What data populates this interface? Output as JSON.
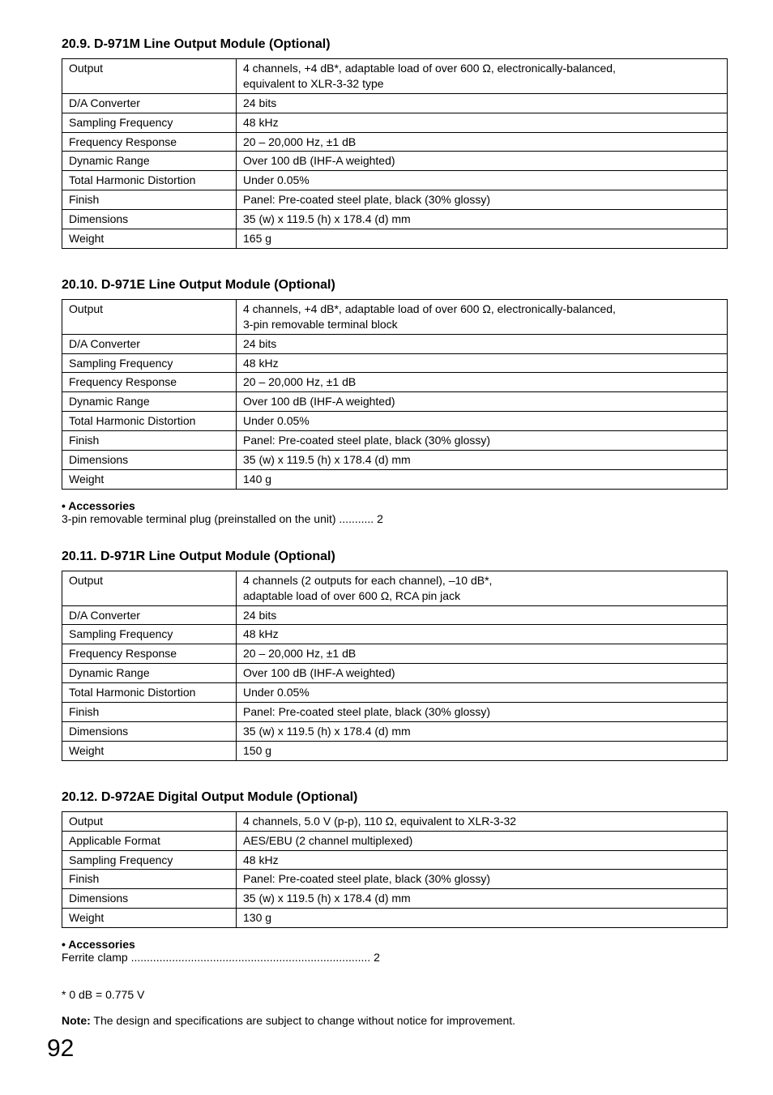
{
  "page_number": "92",
  "sections": [
    {
      "title": "20.9. D-971M Line Output Module (Optional)",
      "rows": [
        [
          "Output",
          "4 channels, +4 dB*, adaptable load of over 600 Ω, electronically-balanced,\nequivalent to XLR-3-32 type"
        ],
        [
          "D/A Converter",
          "24 bits"
        ],
        [
          "Sampling Frequency",
          "48 kHz"
        ],
        [
          "Frequency Response",
          "20 – 20,000 Hz, ±1 dB"
        ],
        [
          "Dynamic Range",
          "Over 100 dB (IHF-A weighted)"
        ],
        [
          "Total Harmonic Distortion",
          "Under 0.05%"
        ],
        [
          "Finish",
          "Panel: Pre-coated steel plate, black (30% glossy)"
        ],
        [
          "Dimensions",
          "35 (w) x 119.5 (h) x 178.4 (d) mm"
        ],
        [
          "Weight",
          "165 g"
        ]
      ]
    },
    {
      "title": "20.10. D-971E Line Output Module (Optional)",
      "rows": [
        [
          "Output",
          "4 channels, +4 dB*, adaptable load of over 600 Ω, electronically-balanced,\n3-pin removable terminal block"
        ],
        [
          "D/A Converter",
          "24 bits"
        ],
        [
          "Sampling Frequency",
          "48 kHz"
        ],
        [
          "Frequency Response",
          "20 – 20,000 Hz, ±1 dB"
        ],
        [
          "Dynamic Range",
          "Over 100 dB (IHF-A weighted)"
        ],
        [
          "Total Harmonic Distortion",
          "Under 0.05%"
        ],
        [
          "Finish",
          "Panel: Pre-coated steel plate, black (30% glossy)"
        ],
        [
          "Dimensions",
          "35 (w) x 119.5 (h) x 178.4 (d) mm"
        ],
        [
          "Weight",
          "140 g"
        ]
      ],
      "accessories_header": "• Accessories",
      "accessories_line": "3-pin removable terminal plug (preinstalled on the unit) ........... 2"
    },
    {
      "title": "20.11. D-971R Line Output Module (Optional)",
      "rows": [
        [
          "Output",
          "4 channels (2 outputs for each channel), –10 dB*,\nadaptable load of over 600 Ω, RCA pin jack"
        ],
        [
          "D/A Converter",
          "24 bits"
        ],
        [
          "Sampling Frequency",
          "48 kHz"
        ],
        [
          "Frequency Response",
          "20 – 20,000 Hz, ±1 dB"
        ],
        [
          "Dynamic Range",
          "Over 100 dB (IHF-A weighted)"
        ],
        [
          "Total Harmonic Distortion",
          "Under 0.05%"
        ],
        [
          "Finish",
          "Panel: Pre-coated steel plate, black (30% glossy)"
        ],
        [
          "Dimensions",
          "35 (w) x 119.5 (h) x 178.4 (d) mm"
        ],
        [
          "Weight",
          "150 g"
        ]
      ]
    },
    {
      "title": "20.12. D-972AE Digital Output Module (Optional)",
      "rows": [
        [
          "Output",
          "4 channels, 5.0 V (p-p), 110 Ω, equivalent to XLR-3-32"
        ],
        [
          "Applicable Format",
          "AES/EBU (2 channel multiplexed)"
        ],
        [
          "Sampling Frequency",
          "48 kHz"
        ],
        [
          "Finish",
          "Panel: Pre-coated steel plate, black (30% glossy)"
        ],
        [
          "Dimensions",
          "35 (w) x 119.5 (h) x 178.4 (d) mm"
        ],
        [
          "Weight",
          "130 g"
        ]
      ],
      "accessories_header": "• Accessories",
      "accessories_line": "Ferrite clamp ............................................................................ 2"
    }
  ],
  "footnote": "* 0 dB = 0.775 V",
  "note_label": "Note:",
  "note_text": " The design and specifications are subject to change without notice for improvement."
}
